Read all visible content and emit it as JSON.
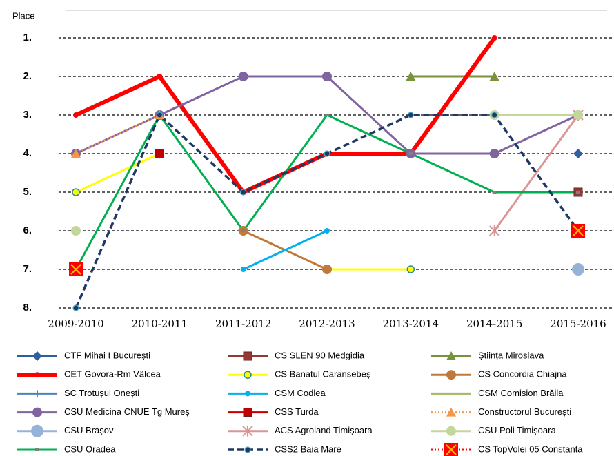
{
  "chart_data": {
    "type": "line",
    "y_axis_label": "Place",
    "categories": [
      "2009-2010",
      "2010-2011",
      "2011-2012",
      "2012-2013",
      "2013-2014",
      "2014-2015",
      "2015-2016"
    ],
    "ylim": [
      1,
      8
    ],
    "y_reversed": true,
    "grid": true,
    "yticks": [
      {
        "value": 1,
        "label": "1."
      },
      {
        "value": 2,
        "label": "2."
      },
      {
        "value": 3,
        "label": "3."
      },
      {
        "value": 4,
        "label": "4."
      },
      {
        "value": 5,
        "label": "5."
      },
      {
        "value": 6,
        "label": "6."
      },
      {
        "value": 7,
        "label": "7."
      },
      {
        "value": 8,
        "label": "8."
      }
    ],
    "legend": "bottom",
    "series": [
      {
        "name": "CTF Mihai I București",
        "color": "#2e5f9e",
        "marker": "diamond",
        "dash": "solid",
        "width": 3,
        "values": [
          null,
          null,
          null,
          null,
          null,
          null,
          4
        ]
      },
      {
        "name": "CS SLEN 90 Medgidia",
        "color": "#953735",
        "marker": "square",
        "dash": "solid",
        "width": 3,
        "values": [
          null,
          null,
          null,
          null,
          null,
          null,
          5
        ]
      },
      {
        "name": "Știința Miroslava",
        "color": "#77933c",
        "marker": "triangle",
        "dash": "solid",
        "width": 3,
        "values": [
          null,
          null,
          null,
          null,
          2,
          2,
          null
        ]
      },
      {
        "name": "CET Govora-Rm Vâlcea",
        "color": "#ff0000",
        "marker": "circle-small",
        "dash": "solid",
        "width": 6,
        "values": [
          3,
          2,
          5,
          4,
          4,
          1,
          null
        ]
      },
      {
        "name": "CS Banatul Caransebeș",
        "color": "#ffff00",
        "marker": "ring",
        "dash": "solid",
        "width": 3,
        "values": [
          5,
          4,
          null,
          7,
          7,
          null,
          null
        ]
      },
      {
        "name": "CS Concordia Chiajna",
        "color": "#c0783b",
        "marker": "circle",
        "dash": "solid",
        "width": 3,
        "values": [
          null,
          null,
          6,
          7,
          null,
          null,
          null
        ]
      },
      {
        "name": "SC Trotușul Onești",
        "color": "#4f81bd",
        "marker": "plus",
        "dash": "solid",
        "width": 3,
        "values": [
          null,
          null,
          null,
          null,
          null,
          null,
          null
        ]
      },
      {
        "name": "CSM Codlea",
        "color": "#00b0f0",
        "marker": "circle-small",
        "dash": "solid",
        "width": 3,
        "values": [
          null,
          null,
          7,
          6,
          null,
          null,
          null
        ]
      },
      {
        "name": "CSM Comision Brăila",
        "color": "#9bbb59",
        "marker": "none",
        "dash": "solid",
        "width": 3,
        "values": [
          null,
          null,
          null,
          null,
          null,
          null,
          null
        ]
      },
      {
        "name": "CSU Medicina CNUE Tg Mureș",
        "color": "#8064a2",
        "marker": "circle",
        "dash": "solid",
        "width": 3,
        "values": [
          4,
          3,
          2,
          2,
          4,
          4,
          3
        ]
      },
      {
        "name": "CSS Turda",
        "color": "#c00000",
        "marker": "square",
        "dash": "solid",
        "width": 3,
        "values": [
          null,
          4,
          null,
          null,
          null,
          null,
          null
        ]
      },
      {
        "name": "Constructorul București",
        "color": "#f79646",
        "marker": "triangle",
        "dash": "dot",
        "width": 3,
        "values": [
          4,
          3,
          null,
          null,
          null,
          null,
          null
        ]
      },
      {
        "name": "CSU Brașov",
        "color": "#95b3d7",
        "marker": "circle-big",
        "dash": "solid",
        "width": 3,
        "values": [
          null,
          null,
          null,
          null,
          null,
          null,
          7
        ]
      },
      {
        "name": "ACS Agroland Timișoara",
        "color": "#d99694",
        "marker": "star",
        "dash": "solid",
        "width": 3,
        "values": [
          null,
          null,
          null,
          null,
          null,
          6,
          3
        ]
      },
      {
        "name": "CSU Poli Timișoara",
        "color": "#c3d69b",
        "marker": "circle",
        "dash": "solid",
        "width": 3,
        "values": [
          6,
          null,
          null,
          null,
          null,
          3,
          3
        ]
      },
      {
        "name": "CSU Oradea",
        "color": "#00b050",
        "marker": "dash",
        "dash": "solid",
        "width": 3,
        "values": [
          7,
          3,
          6,
          3,
          4,
          5,
          5
        ]
      },
      {
        "name": "CSS2 Baia Mare",
        "color": "#1f3864",
        "marker": "ring-small",
        "dash": "dash",
        "width": 3.5,
        "values": [
          8,
          3,
          5,
          4,
          3,
          3,
          6
        ]
      },
      {
        "name": "CS TopVolei 05 Constanta",
        "color": "#ff0000",
        "marker": "xsquare",
        "dash": "dot",
        "width": 3,
        "values": [
          7,
          null,
          null,
          null,
          null,
          null,
          6
        ]
      }
    ]
  }
}
